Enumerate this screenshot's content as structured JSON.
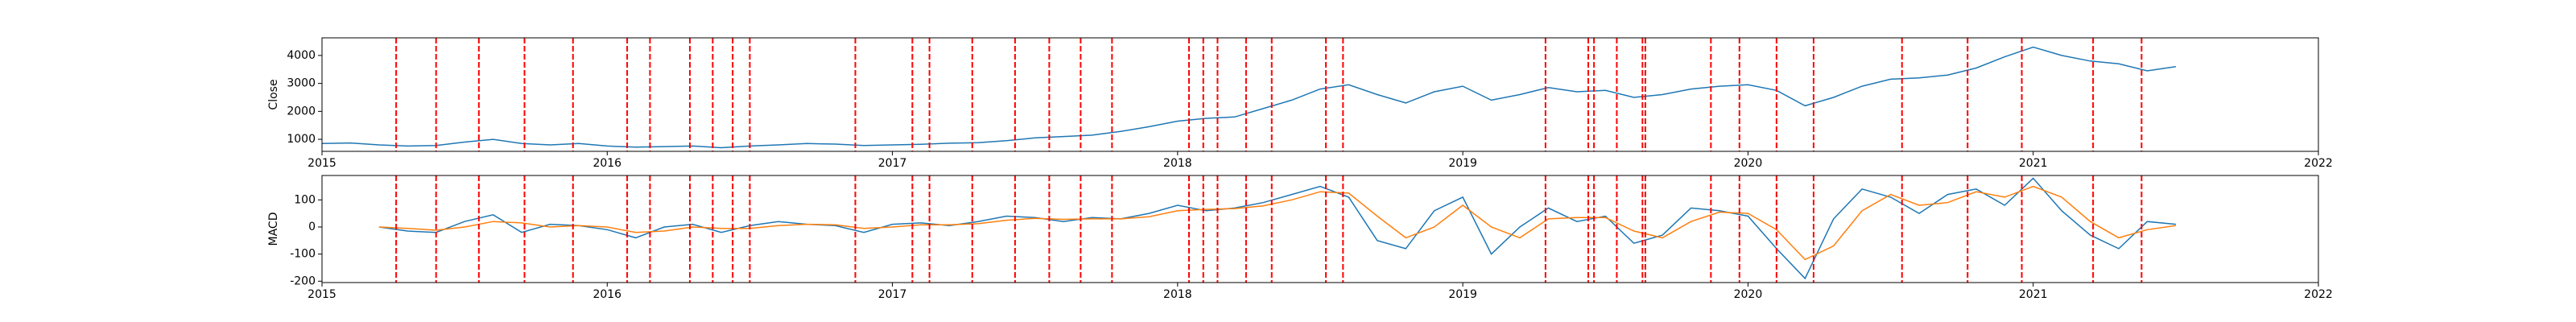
{
  "chart_data": [
    {
      "type": "line",
      "ylabel": "Close",
      "x": [
        2015.0,
        2015.1,
        2015.2,
        2015.3,
        2015.4,
        2015.5,
        2015.6,
        2015.7,
        2015.8,
        2015.9,
        2016.0,
        2016.1,
        2016.2,
        2016.3,
        2016.4,
        2016.5,
        2016.6,
        2016.7,
        2016.8,
        2016.9,
        2017.0,
        2017.1,
        2017.2,
        2017.3,
        2017.4,
        2017.5,
        2017.6,
        2017.7,
        2017.8,
        2017.9,
        2018.0,
        2018.1,
        2018.2,
        2018.3,
        2018.4,
        2018.5,
        2018.6,
        2018.7,
        2018.8,
        2018.9,
        2019.0,
        2019.1,
        2019.2,
        2019.3,
        2019.4,
        2019.5,
        2019.6,
        2019.7,
        2019.8,
        2019.9,
        2020.0,
        2020.1,
        2020.2,
        2020.3,
        2020.4,
        2020.5,
        2020.6,
        2020.7,
        2020.8,
        2020.9,
        2021.0,
        2021.1,
        2021.2,
        2021.3,
        2021.4,
        2021.5
      ],
      "series": [
        {
          "color": "#1f77b4",
          "values": [
            850,
            870,
            800,
            760,
            780,
            900,
            1000,
            850,
            800,
            850,
            760,
            720,
            740,
            760,
            700,
            760,
            800,
            850,
            830,
            780,
            800,
            820,
            860,
            880,
            950,
            1050,
            1100,
            1150,
            1280,
            1450,
            1650,
            1750,
            1800,
            2100,
            2400,
            2800,
            2950,
            2600,
            2300,
            2700,
            2900,
            2400,
            2600,
            2850,
            2700,
            2750,
            2500,
            2600,
            2800,
            2900,
            2950,
            2750,
            2200,
            2500,
            2900,
            3150,
            3200,
            3300,
            3550,
            3950,
            4300,
            4000,
            3800,
            3700,
            3450,
            3600
          ]
        }
      ],
      "vlines": [
        2015.26,
        2015.4,
        2015.55,
        2015.71,
        2015.88,
        2016.07,
        2016.15,
        2016.29,
        2016.37,
        2016.44,
        2016.5,
        2016.87,
        2017.07,
        2017.13,
        2017.28,
        2017.43,
        2017.55,
        2017.66,
        2017.77,
        2018.04,
        2018.09,
        2018.14,
        2018.24,
        2018.33,
        2018.52,
        2018.58,
        2019.29,
        2019.44,
        2019.46,
        2019.54,
        2019.63,
        2019.64,
        2019.87,
        2019.97,
        2020.1,
        2020.23,
        2020.54,
        2020.77,
        2020.96,
        2021.21,
        2021.38
      ],
      "vline_color": "#ff0000",
      "xlim": [
        2015,
        2022
      ],
      "xticks": [
        2015,
        2016,
        2017,
        2018,
        2019,
        2020,
        2021,
        2022
      ],
      "ylim": [
        570,
        4630
      ],
      "yticks": [
        1000,
        2000,
        3000,
        4000
      ]
    },
    {
      "type": "line",
      "ylabel": "MACD",
      "x": [
        2015.2,
        2015.3,
        2015.4,
        2015.5,
        2015.6,
        2015.7,
        2015.8,
        2015.9,
        2016.0,
        2016.1,
        2016.2,
        2016.3,
        2016.4,
        2016.5,
        2016.6,
        2016.7,
        2016.8,
        2016.9,
        2017.0,
        2017.1,
        2017.2,
        2017.3,
        2017.4,
        2017.5,
        2017.6,
        2017.7,
        2017.8,
        2017.9,
        2018.0,
        2018.1,
        2018.2,
        2018.3,
        2018.4,
        2018.5,
        2018.6,
        2018.7,
        2018.8,
        2018.9,
        2019.0,
        2019.1,
        2019.2,
        2019.3,
        2019.4,
        2019.5,
        2019.6,
        2019.7,
        2019.8,
        2019.9,
        2020.0,
        2020.1,
        2020.2,
        2020.3,
        2020.4,
        2020.5,
        2020.6,
        2020.7,
        2020.8,
        2020.9,
        2021.0,
        2021.1,
        2021.2,
        2021.3,
        2021.4,
        2021.5
      ],
      "series": [
        {
          "color": "#1f77b4",
          "values": [
            0,
            -15,
            -20,
            20,
            45,
            -20,
            10,
            5,
            -10,
            -40,
            0,
            10,
            -20,
            5,
            20,
            10,
            5,
            -20,
            10,
            15,
            5,
            20,
            40,
            35,
            20,
            35,
            30,
            50,
            80,
            60,
            70,
            90,
            120,
            150,
            110,
            -50,
            -80,
            60,
            110,
            -100,
            0,
            70,
            20,
            40,
            -60,
            -30,
            70,
            60,
            40,
            -80,
            -190,
            30,
            140,
            110,
            50,
            120,
            140,
            80,
            180,
            60,
            -30,
            -80,
            20,
            10
          ]
        },
        {
          "color": "#ff7f0e",
          "values": [
            0,
            -5,
            -12,
            0,
            20,
            15,
            0,
            5,
            0,
            -20,
            -15,
            0,
            -5,
            -5,
            5,
            10,
            8,
            -5,
            0,
            8,
            8,
            12,
            25,
            32,
            28,
            30,
            30,
            38,
            60,
            65,
            68,
            78,
            100,
            130,
            125,
            40,
            -40,
            0,
            80,
            0,
            -40,
            30,
            35,
            35,
            -15,
            -40,
            20,
            55,
            50,
            -10,
            -120,
            -70,
            60,
            120,
            80,
            90,
            130,
            110,
            150,
            110,
            20,
            -40,
            -10,
            5
          ]
        }
      ],
      "vlines": [
        2015.26,
        2015.4,
        2015.55,
        2015.71,
        2015.88,
        2016.07,
        2016.15,
        2016.29,
        2016.37,
        2016.44,
        2016.5,
        2016.87,
        2017.07,
        2017.13,
        2017.28,
        2017.43,
        2017.55,
        2017.66,
        2017.77,
        2018.04,
        2018.09,
        2018.14,
        2018.24,
        2018.33,
        2018.52,
        2018.58,
        2019.29,
        2019.44,
        2019.46,
        2019.54,
        2019.63,
        2019.64,
        2019.87,
        2019.97,
        2020.1,
        2020.23,
        2020.54,
        2020.77,
        2020.96,
        2021.21,
        2021.38
      ],
      "vline_color": "#ff0000",
      "xlim": [
        2015,
        2022
      ],
      "xticks": [
        2015,
        2016,
        2017,
        2018,
        2019,
        2020,
        2021,
        2022
      ],
      "ylim": [
        -205,
        190
      ],
      "yticks": [
        -200,
        -100,
        0,
        100
      ]
    }
  ]
}
